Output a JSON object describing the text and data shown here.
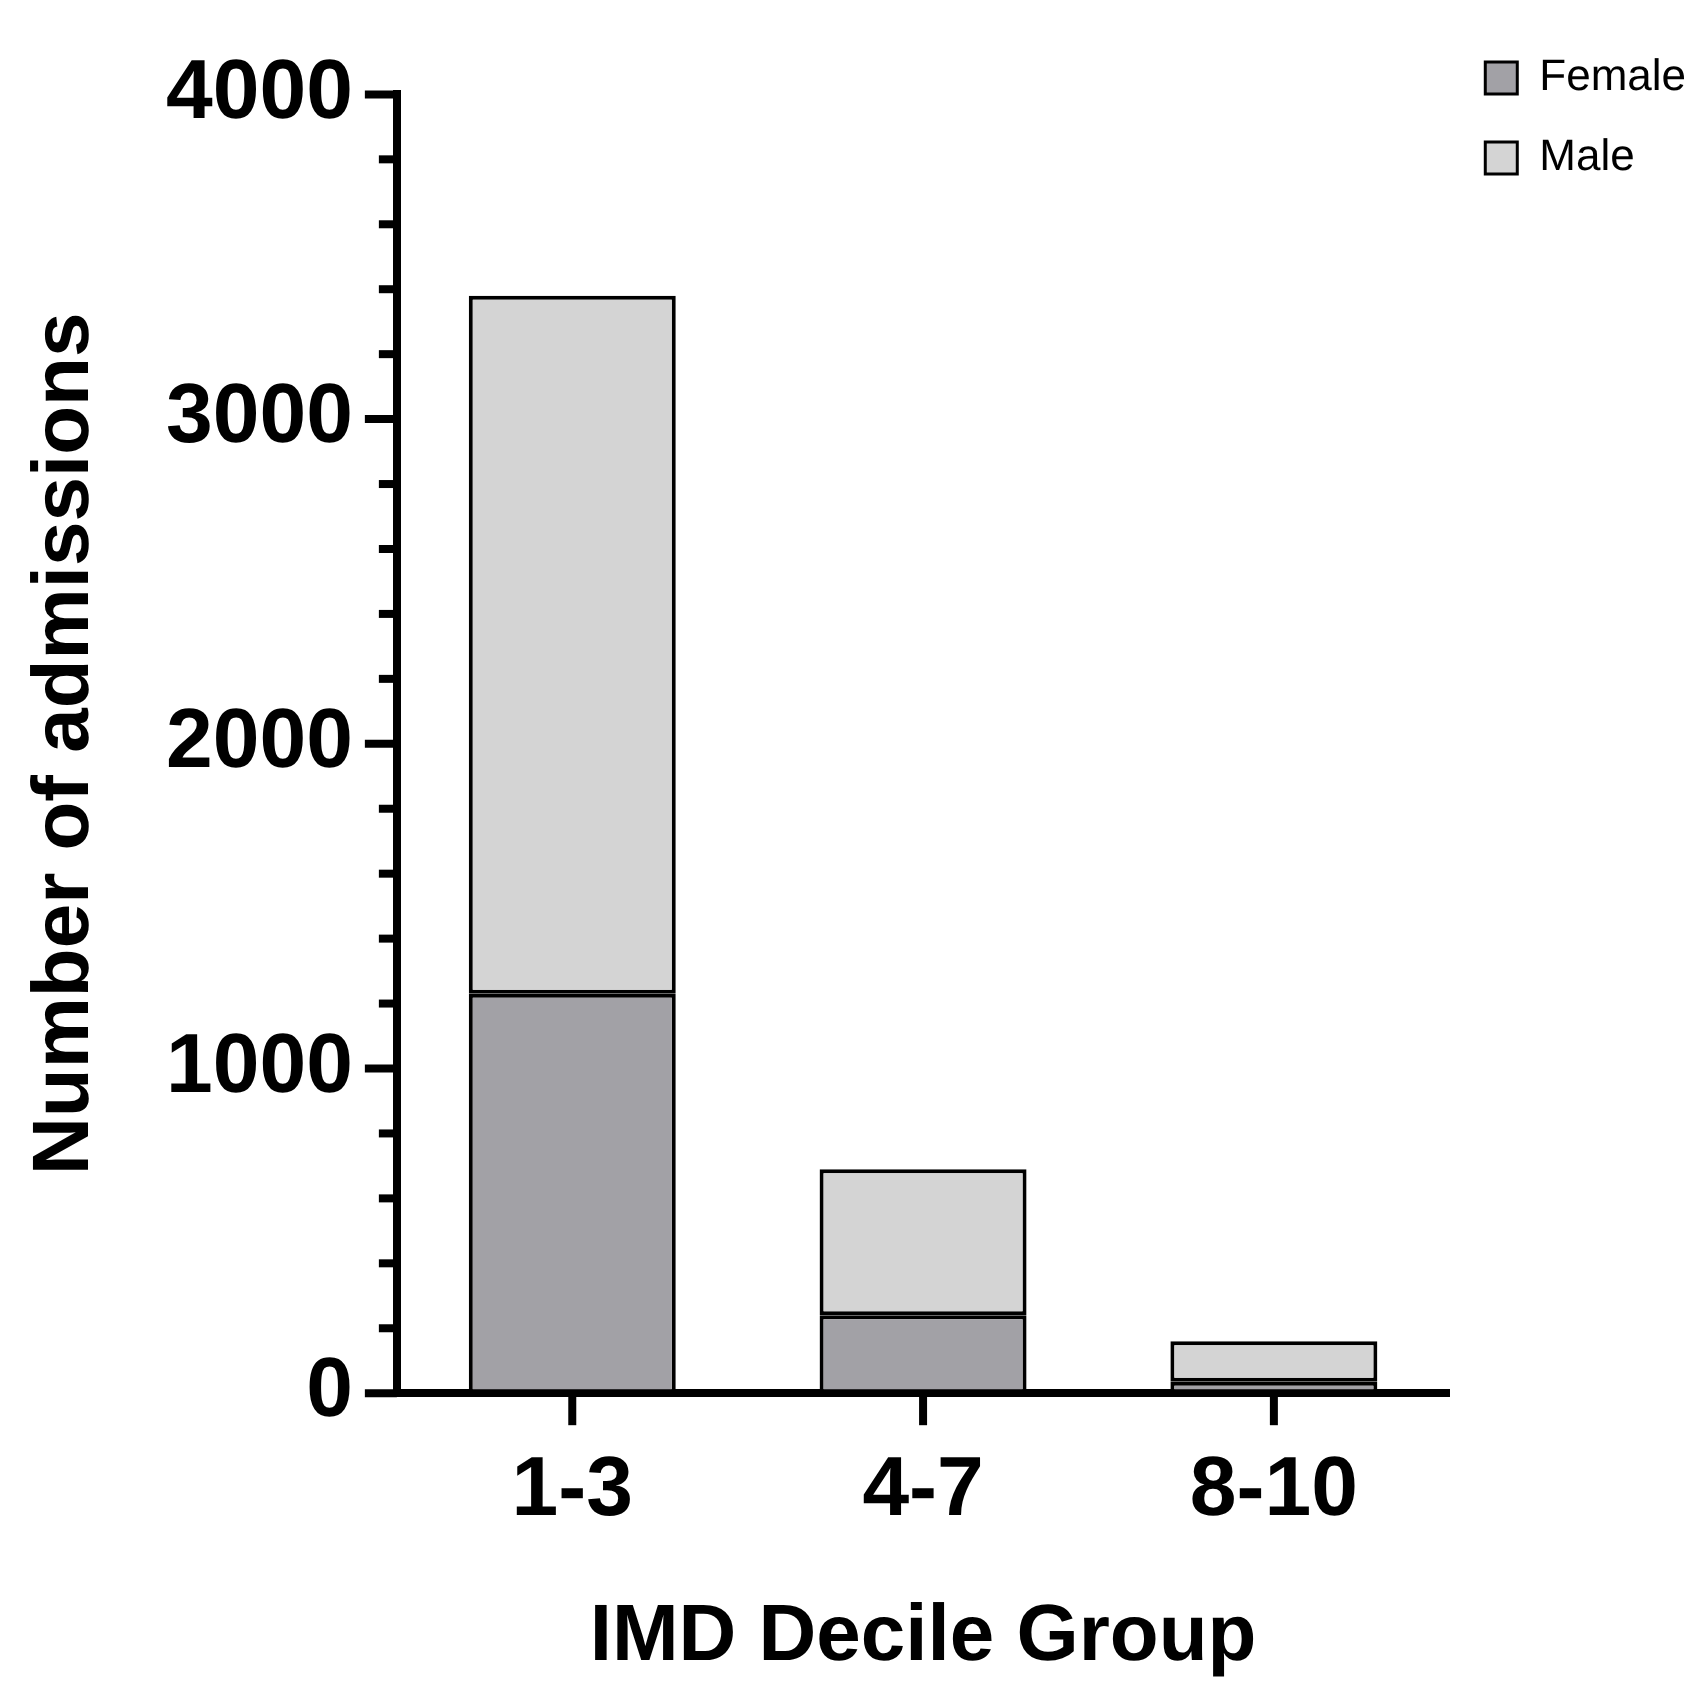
{
  "chart_data": {
    "type": "bar",
    "stacked": true,
    "xlabel": "IMD Decile Group",
    "ylabel": "Number of admissions",
    "categories": [
      "1-3",
      "4-7",
      "8-10"
    ],
    "series": [
      {
        "name": "Female",
        "color": "#a2a1a6",
        "values": [
          1230,
          240,
          35
        ]
      },
      {
        "name": "Male",
        "color": "#d4d4d4",
        "values": [
          2150,
          450,
          125
        ]
      }
    ],
    "ylim": [
      0,
      4000
    ],
    "yticks": [
      0,
      {
        "value": 200,
        "label": null
      },
      {
        "value": 400,
        "label": null
      },
      {
        "value": 600,
        "label": null
      },
      {
        "value": 800,
        "label": null
      },
      1000,
      {
        "value": 1200,
        "label": null
      },
      {
        "value": 1400,
        "label": null
      },
      {
        "value": 1600,
        "label": null
      },
      {
        "value": 1800,
        "label": null
      },
      2000,
      {
        "value": 2200,
        "label": null
      },
      {
        "value": 2400,
        "label": null
      },
      {
        "value": 2600,
        "label": null
      },
      {
        "value": 2800,
        "label": null
      },
      3000,
      {
        "value": 3200,
        "label": null
      },
      {
        "value": 3400,
        "label": null
      },
      {
        "value": 3600,
        "label": null
      },
      {
        "value": 3800,
        "label": null
      },
      4000
    ],
    "legend": "top right",
    "grid": false
  }
}
